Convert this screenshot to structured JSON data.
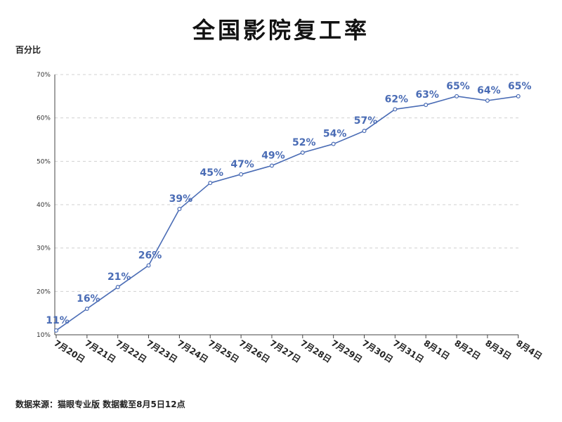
{
  "chart_data": {
    "type": "line",
    "title": "全国影院复工率",
    "ylabel": "百分比",
    "ylim": [
      10,
      70
    ],
    "yticks": [
      "10%",
      "20%",
      "30%",
      "40%",
      "50%",
      "60%",
      "70%"
    ],
    "ytick_values": [
      10,
      20,
      30,
      40,
      50,
      60,
      70
    ],
    "grid": true,
    "categories": [
      "7月20日",
      "7月21日",
      "7月22日",
      "7月23日",
      "7月24日",
      "7月25日",
      "7月26日",
      "7月27日",
      "7月28日",
      "7月29日",
      "7月30日",
      "7月31日",
      "8月1日",
      "8月2日",
      "8月3日",
      "8月4日"
    ],
    "series": [
      {
        "values": [
          11,
          16,
          21,
          26,
          39,
          45,
          47,
          49,
          52,
          54,
          57,
          62,
          63,
          65,
          64,
          65
        ],
        "labels": [
          "11%",
          "16%",
          "21%",
          "26%",
          "39%",
          "45%",
          "47%",
          "49%",
          "52%",
          "54%",
          "57%",
          "62%",
          "63%",
          "65%",
          "64%",
          "65%"
        ]
      }
    ],
    "source": "数据来源：猫眼专业版 数据截至8月5日12点"
  },
  "colors": {
    "line": "#4a6cb5",
    "label": "#4a6cb5",
    "grid": "#d0d0d0",
    "axis": "#444444"
  }
}
